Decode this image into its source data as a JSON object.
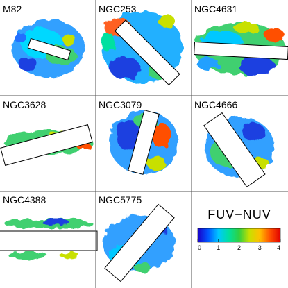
{
  "panels": [
    {
      "name": "M82"
    },
    {
      "name": "NGC253"
    },
    {
      "name": "NGC4631"
    },
    {
      "name": "NGC3628"
    },
    {
      "name": "NGC3079"
    },
    {
      "name": "NGC4666"
    },
    {
      "name": "NGC4388"
    },
    {
      "name": "NGC5775"
    }
  ],
  "colorbar": {
    "title": "FUV−NUV",
    "ticks": [
      "0",
      "1",
      "2",
      "3",
      "4"
    ],
    "range": [
      0,
      4
    ],
    "stops": [
      "#1a00c8",
      "#0055ff",
      "#00c8ff",
      "#00e0a0",
      "#30d040",
      "#c8e000",
      "#ffc000",
      "#ff5000",
      "#e00000"
    ]
  }
}
